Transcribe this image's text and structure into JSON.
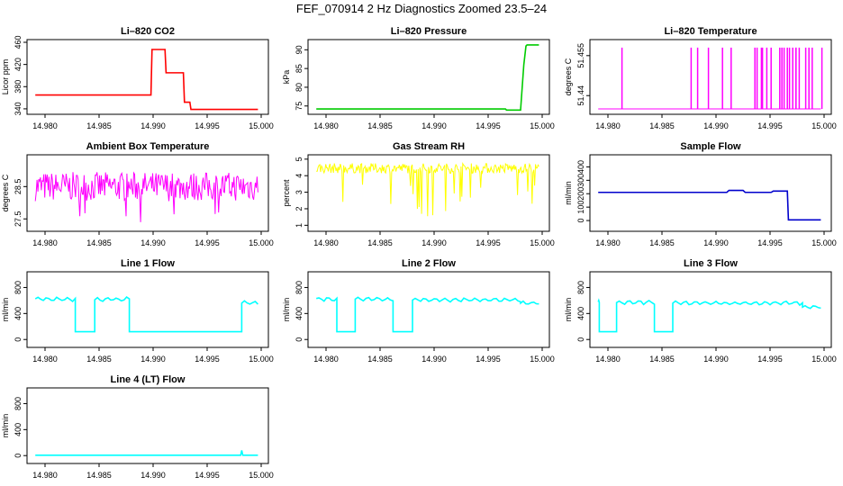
{
  "page_title": "FEF_070914  2 Hz Diagnostics Zoomed 23.5–24",
  "colors": {
    "co2": "#ff0000",
    "pressure": "#00cc00",
    "temperature": "#ff00ff",
    "ambient": "#ff00ff",
    "rh": "#ffff00",
    "sample_flow": "#0000cc",
    "line_flow": "#00ffff"
  },
  "chart_data": [
    {
      "type": "line",
      "title": "Li–820 CO2",
      "ylabel": "Licor ppm",
      "xlim": [
        14.979,
        15.0
      ],
      "ylim": [
        335,
        460
      ],
      "yticks": [
        340,
        380,
        420,
        460
      ],
      "xticks": [
        "14.980",
        "14.985",
        "14.990",
        "14.995",
        "15.000"
      ],
      "color": "#ff0000",
      "x": [
        14.9791,
        14.985,
        14.9898,
        14.9899,
        14.9911,
        14.9912,
        14.9928,
        14.9929,
        14.9934,
        14.9935,
        14.9937,
        14.9938,
        14.9997
      ],
      "y": [
        365,
        365,
        365,
        447,
        447,
        405,
        405,
        352,
        352,
        339,
        339,
        339,
        339
      ]
    },
    {
      "type": "line",
      "title": "Li–820 Pressure",
      "ylabel": "kPa",
      "xlim": [
        14.979,
        15.0
      ],
      "ylim": [
        73.5,
        92
      ],
      "yticks": [
        75,
        80,
        85,
        90
      ],
      "xticks": [
        "14.980",
        "14.985",
        "14.990",
        "14.995",
        "15.000"
      ],
      "color": "#00cc00",
      "x": [
        14.9791,
        14.9966,
        14.9967,
        14.998,
        14.9983,
        14.9985,
        14.9986,
        14.9997
      ],
      "y": [
        74.2,
        74.2,
        73.9,
        73.9,
        86,
        91,
        91.3,
        91.3
      ]
    },
    {
      "type": "line",
      "title": "Li–820 Temperature",
      "ylabel": "degrees C",
      "xlim": [
        14.979,
        15.0
      ],
      "ylim": [
        51.434,
        51.46
      ],
      "yticks": [
        51.44,
        51.455
      ],
      "xticks": [
        "14.980",
        "14.985",
        "14.990",
        "14.995",
        "15.000"
      ],
      "color": "#ff00ff",
      "spikes": [
        14.9813,
        14.9943,
        14.9947,
        14.9951,
        14.9961,
        14.9963,
        14.9966,
        14.9974,
        14.9983,
        14.9986,
        14.9989,
        14.9998,
        14.9938,
        14.9942,
        14.9959,
        14.9968,
        14.9971,
        14.9974,
        14.9977,
        14.9906,
        14.9936,
        14.9914,
        14.9877,
        14.9883,
        14.9893
      ],
      "baseline": 51.435,
      "spike_value": 51.458
    },
    {
      "type": "line",
      "title": "Ambient Box Temperature",
      "ylabel": "degrees C",
      "xlim": [
        14.979,
        15.0
      ],
      "ylim": [
        27.2,
        29.4
      ],
      "yticks": [
        27.5,
        28.5
      ],
      "xticks": [
        "14.980",
        "14.985",
        "14.990",
        "14.995",
        "15.000"
      ],
      "color": "#ff00ff",
      "noise_center": 28.5,
      "noise_amp": 0.45
    },
    {
      "type": "line",
      "title": "Gas Stream RH",
      "ylabel": "percent",
      "xlim": [
        14.979,
        15.0
      ],
      "ylim": [
        0.8,
        5.1
      ],
      "yticks": [
        1,
        2,
        3,
        4,
        5
      ],
      "xticks": [
        "14.980",
        "14.985",
        "14.990",
        "14.995",
        "15.000"
      ],
      "color": "#ffff00",
      "noise_center": 4.45,
      "noise_amp": 0.3
    },
    {
      "type": "line",
      "title": "Sample Flow",
      "ylabel": "ml/min",
      "xlim": [
        14.979,
        15.0
      ],
      "ylim": [
        -60,
        470
      ],
      "yticks": [
        0,
        100,
        200,
        300,
        400
      ],
      "xticks": [
        "14.980",
        "14.985",
        "14.990",
        "14.995",
        "15.000"
      ],
      "color": "#0000cc",
      "x": [
        14.9791,
        14.991,
        14.9912,
        14.9925,
        14.9927,
        14.9951,
        14.9953,
        14.9966,
        14.9967,
        14.9997
      ],
      "y": [
        210,
        210,
        225,
        225,
        210,
        210,
        220,
        220,
        5,
        5
      ]
    },
    {
      "type": "line",
      "title": "Line 1 Flow",
      "ylabel": "ml/min",
      "xlim": [
        14.979,
        15.0
      ],
      "ylim": [
        -80,
        1000
      ],
      "yticks": [
        0,
        400,
        800
      ],
      "xticks": [
        "14.980",
        "14.985",
        "14.990",
        "14.995",
        "15.000"
      ],
      "color": "#00ffff",
      "segments": [
        [
          14.9791,
          14.9828,
          620
        ],
        [
          14.9828,
          14.9846,
          120
        ],
        [
          14.9846,
          14.9878,
          620
        ],
        [
          14.9878,
          14.9982,
          120
        ],
        [
          14.9982,
          14.9997,
          560
        ]
      ]
    },
    {
      "type": "line",
      "title": "Line 2 Flow",
      "ylabel": "ml/min",
      "xlim": [
        14.979,
        15.0
      ],
      "ylim": [
        -80,
        1000
      ],
      "yticks": [
        0,
        400,
        800
      ],
      "xticks": [
        "14.980",
        "14.985",
        "14.990",
        "14.995",
        "15.000"
      ],
      "color": "#00ffff",
      "segments": [
        [
          14.9791,
          14.981,
          620
        ],
        [
          14.981,
          14.9827,
          120
        ],
        [
          14.9827,
          14.9862,
          620
        ],
        [
          14.9862,
          14.988,
          120
        ],
        [
          14.988,
          14.998,
          610
        ],
        [
          14.998,
          14.9997,
          560
        ]
      ]
    },
    {
      "type": "line",
      "title": "Line 3 Flow",
      "ylabel": "ml/min",
      "xlim": [
        14.979,
        15.0
      ],
      "ylim": [
        -80,
        1000
      ],
      "yticks": [
        0,
        400,
        800
      ],
      "xticks": [
        "14.980",
        "14.985",
        "14.990",
        "14.995",
        "15.000"
      ],
      "color": "#00ffff",
      "segments": [
        [
          14.9791,
          14.9792,
          570
        ],
        [
          14.9792,
          14.9808,
          120
        ],
        [
          14.9808,
          14.9843,
          570
        ],
        [
          14.9843,
          14.986,
          120
        ],
        [
          14.986,
          14.998,
          560
        ],
        [
          14.998,
          14.9997,
          500
        ]
      ]
    },
    {
      "type": "line",
      "title": "Line 4 (LT) Flow",
      "ylabel": "ml/min",
      "xlim": [
        14.979,
        15.0
      ],
      "ylim": [
        -80,
        1000
      ],
      "yticks": [
        0,
        400,
        800
      ],
      "xticks": [
        "14.980",
        "14.985",
        "14.990",
        "14.995",
        "15.000"
      ],
      "color": "#00ffff",
      "x": [
        14.9791,
        14.9981,
        14.9982,
        14.9983,
        14.9997
      ],
      "y": [
        5,
        5,
        80,
        5,
        5
      ]
    }
  ]
}
